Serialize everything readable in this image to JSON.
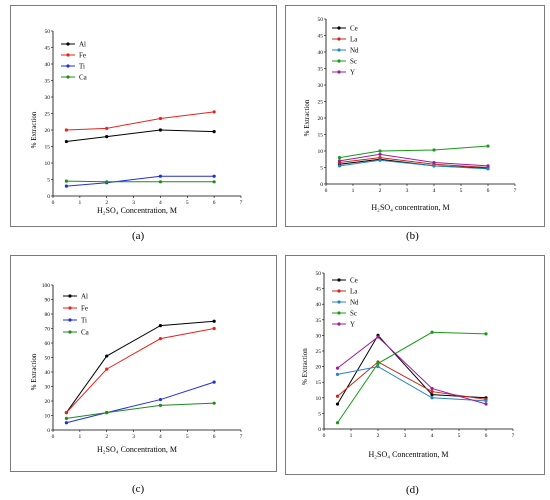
{
  "captions": [
    "(a)",
    "(b)",
    "(c)",
    "(d)"
  ],
  "colors": {
    "Al": "#000000",
    "Fe": "#e8231b",
    "Ti": "#1f2fd6",
    "Ca": "#1f8a1f",
    "Ce": "#000000",
    "La": "#c62a1a",
    "Nd": "#2585c6",
    "Sc": "#189a1a",
    "Y": "#9b1d9b"
  },
  "chart_data": [
    {
      "type": "line",
      "panel": "a",
      "xlabel": "H₂SO₄ Concentration, M",
      "ylabel": "% Extraction",
      "xlim": [
        0,
        7
      ],
      "ylim": [
        0,
        50
      ],
      "xticks": [
        0,
        1,
        2,
        3,
        4,
        5,
        6,
        7
      ],
      "yticks": [
        0,
        5,
        10,
        15,
        20,
        25,
        30,
        35,
        40,
        45,
        50
      ],
      "x": [
        0.5,
        2,
        4,
        6
      ],
      "legend": "top-left",
      "series": [
        {
          "name": "Al",
          "values": [
            16.5,
            18,
            20,
            19.5
          ]
        },
        {
          "name": "Fe",
          "values": [
            20,
            20.5,
            23.5,
            25.5
          ]
        },
        {
          "name": "Ti",
          "values": [
            3,
            4,
            6,
            6
          ]
        },
        {
          "name": "Ca",
          "values": [
            4.5,
            4.3,
            4.3,
            4.3
          ]
        }
      ]
    },
    {
      "type": "line",
      "panel": "b",
      "xlabel": "H₂SO₄ concentration, M",
      "ylabel": "% Extraction",
      "xlim": [
        0,
        7
      ],
      "ylim": [
        0,
        50
      ],
      "xticks": [
        0,
        1,
        2,
        3,
        4,
        5,
        6,
        7
      ],
      "yticks": [
        0,
        5,
        10,
        15,
        20,
        25,
        30,
        35,
        40,
        45,
        50
      ],
      "x": [
        0.5,
        2,
        4,
        6
      ],
      "legend": "top-left",
      "series": [
        {
          "name": "Ce",
          "values": [
            6,
            7.5,
            5.5,
            4.8
          ]
        },
        {
          "name": "La",
          "values": [
            6.5,
            8,
            6,
            5
          ]
        },
        {
          "name": "Nd",
          "values": [
            5.5,
            7.2,
            5.5,
            4.6
          ]
        },
        {
          "name": "Sc",
          "values": [
            8,
            10,
            10.3,
            11.5
          ]
        },
        {
          "name": "Y",
          "values": [
            7,
            9,
            6.5,
            5.5
          ]
        }
      ]
    },
    {
      "type": "line",
      "panel": "c",
      "xlabel": "H₂SO₄ Concentration, M",
      "ylabel": "% Extraction",
      "xlim": [
        0,
        7
      ],
      "ylim": [
        0,
        100
      ],
      "xticks": [
        0,
        1,
        2,
        3,
        4,
        5,
        6,
        7
      ],
      "yticks": [
        0,
        10,
        20,
        30,
        40,
        50,
        60,
        70,
        80,
        90,
        100
      ],
      "x": [
        0.5,
        2,
        4,
        6
      ],
      "legend": "top-left",
      "series": [
        {
          "name": "Al",
          "values": [
            12,
            51,
            72,
            75
          ]
        },
        {
          "name": "Fe",
          "values": [
            12,
            42,
            63,
            70
          ]
        },
        {
          "name": "Ti",
          "values": [
            5,
            12,
            21,
            33
          ]
        },
        {
          "name": "Ca",
          "values": [
            8,
            12,
            17,
            18.5
          ]
        }
      ]
    },
    {
      "type": "line",
      "panel": "d",
      "xlabel": "H₂SO₄ Concentration, M",
      "ylabel": "% Extraction",
      "xlim": [
        0,
        7
      ],
      "ylim": [
        0,
        50
      ],
      "xticks": [
        0,
        1,
        2,
        3,
        4,
        5,
        6,
        7
      ],
      "yticks": [
        0,
        5,
        10,
        15,
        20,
        25,
        30,
        35,
        40,
        45,
        50
      ],
      "x": [
        0.5,
        2,
        4,
        6
      ],
      "legend": "top-left",
      "series": [
        {
          "name": "Ce",
          "values": [
            8,
            30,
            11,
            10
          ]
        },
        {
          "name": "La",
          "values": [
            10.5,
            21.5,
            12,
            9.5
          ]
        },
        {
          "name": "Nd",
          "values": [
            17.5,
            20,
            10,
            9
          ]
        },
        {
          "name": "Sc",
          "values": [
            2,
            21,
            31,
            30.5
          ]
        },
        {
          "name": "Y",
          "values": [
            19.5,
            29.5,
            13,
            8
          ]
        }
      ]
    }
  ]
}
